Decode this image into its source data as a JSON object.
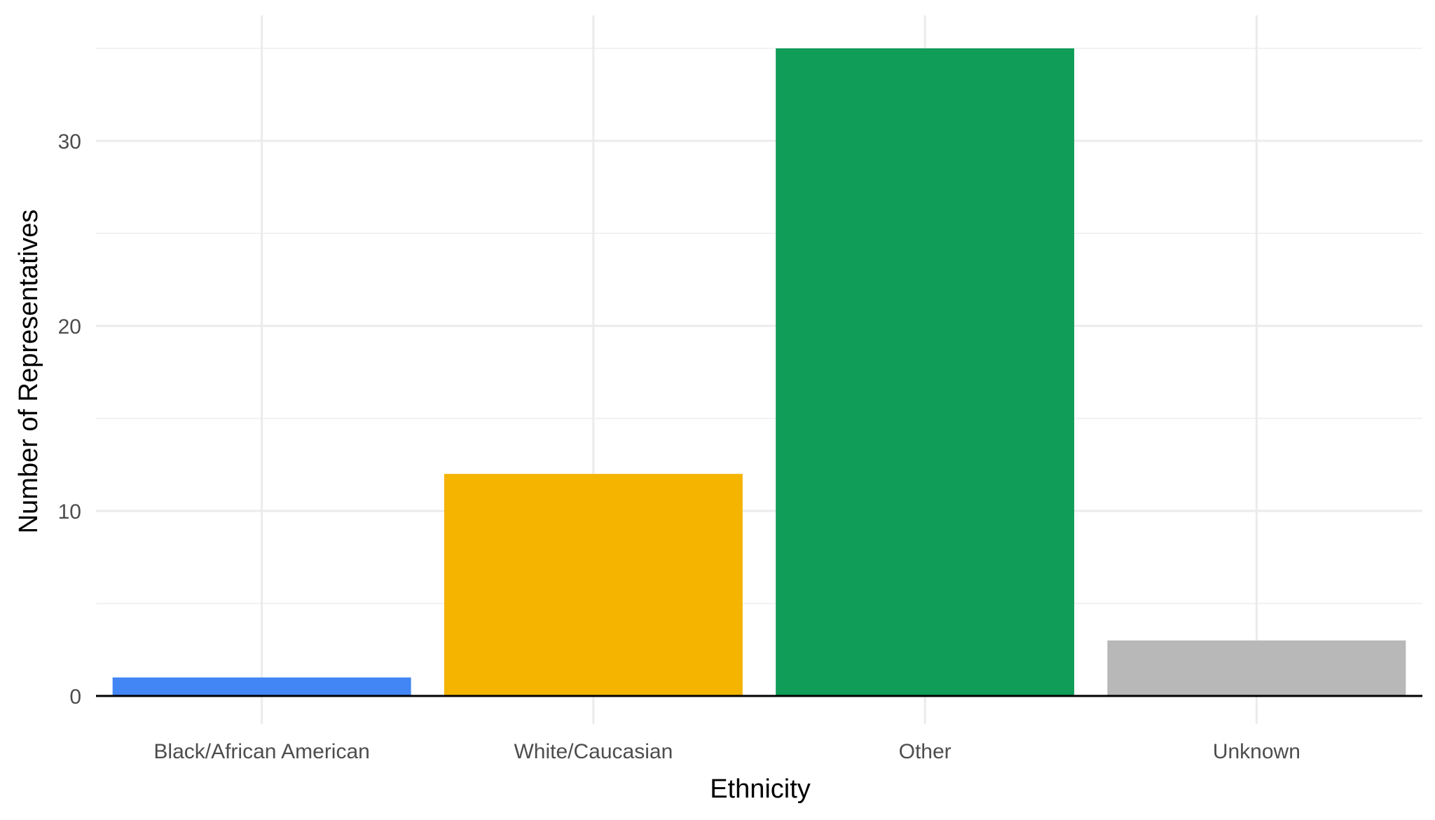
{
  "chart_data": {
    "type": "bar",
    "title": "",
    "xlabel": "Ethnicity",
    "ylabel": "Number of Representatives",
    "categories": [
      "Black/African American",
      "White/Caucasian",
      "Other",
      "Unknown"
    ],
    "values": [
      1,
      12,
      35,
      3
    ],
    "colors": [
      "#4285f4",
      "#f4b400",
      "#0f9d58",
      "#b8b8b8"
    ],
    "yticks": [
      0,
      10,
      20,
      30
    ],
    "ylim": [
      0,
      36.7
    ],
    "grid": true,
    "legend": "none"
  }
}
